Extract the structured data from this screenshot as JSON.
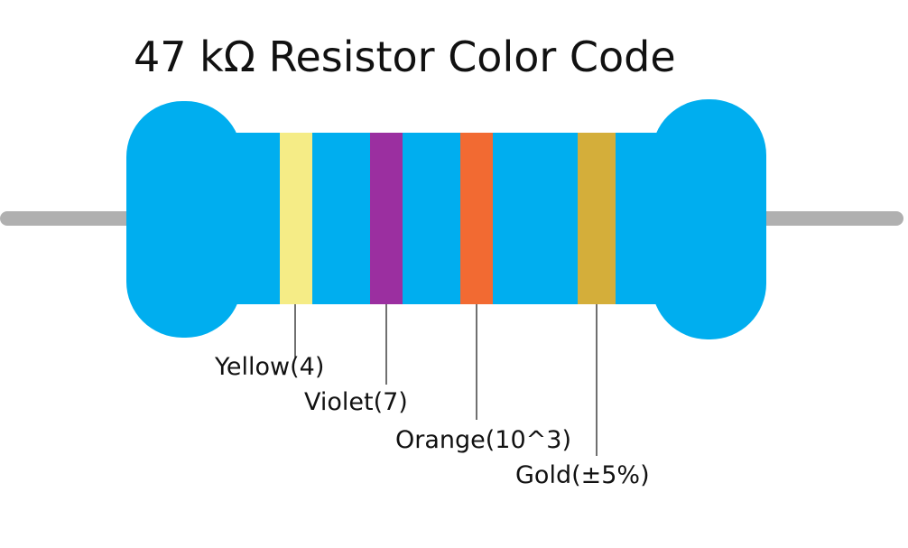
{
  "title": "47 kΩ Resistor Color Code",
  "colors": {
    "body": "#00AEEF",
    "lead": "#B0B0B0",
    "leader_line": "#222222",
    "background": "#FFFFFF"
  },
  "bands": [
    {
      "color_name": "Yellow",
      "label": "Yellow(4)",
      "color": "#F5EC86"
    },
    {
      "color_name": "Violet",
      "label": "Violet(7)",
      "color": "#9B2FA0"
    },
    {
      "color_name": "Orange",
      "label": "Orange(10^3)",
      "color": "#F26A32"
    },
    {
      "color_name": "Gold",
      "label": "Gold(±5%)",
      "color": "#D4AE3A"
    }
  ]
}
